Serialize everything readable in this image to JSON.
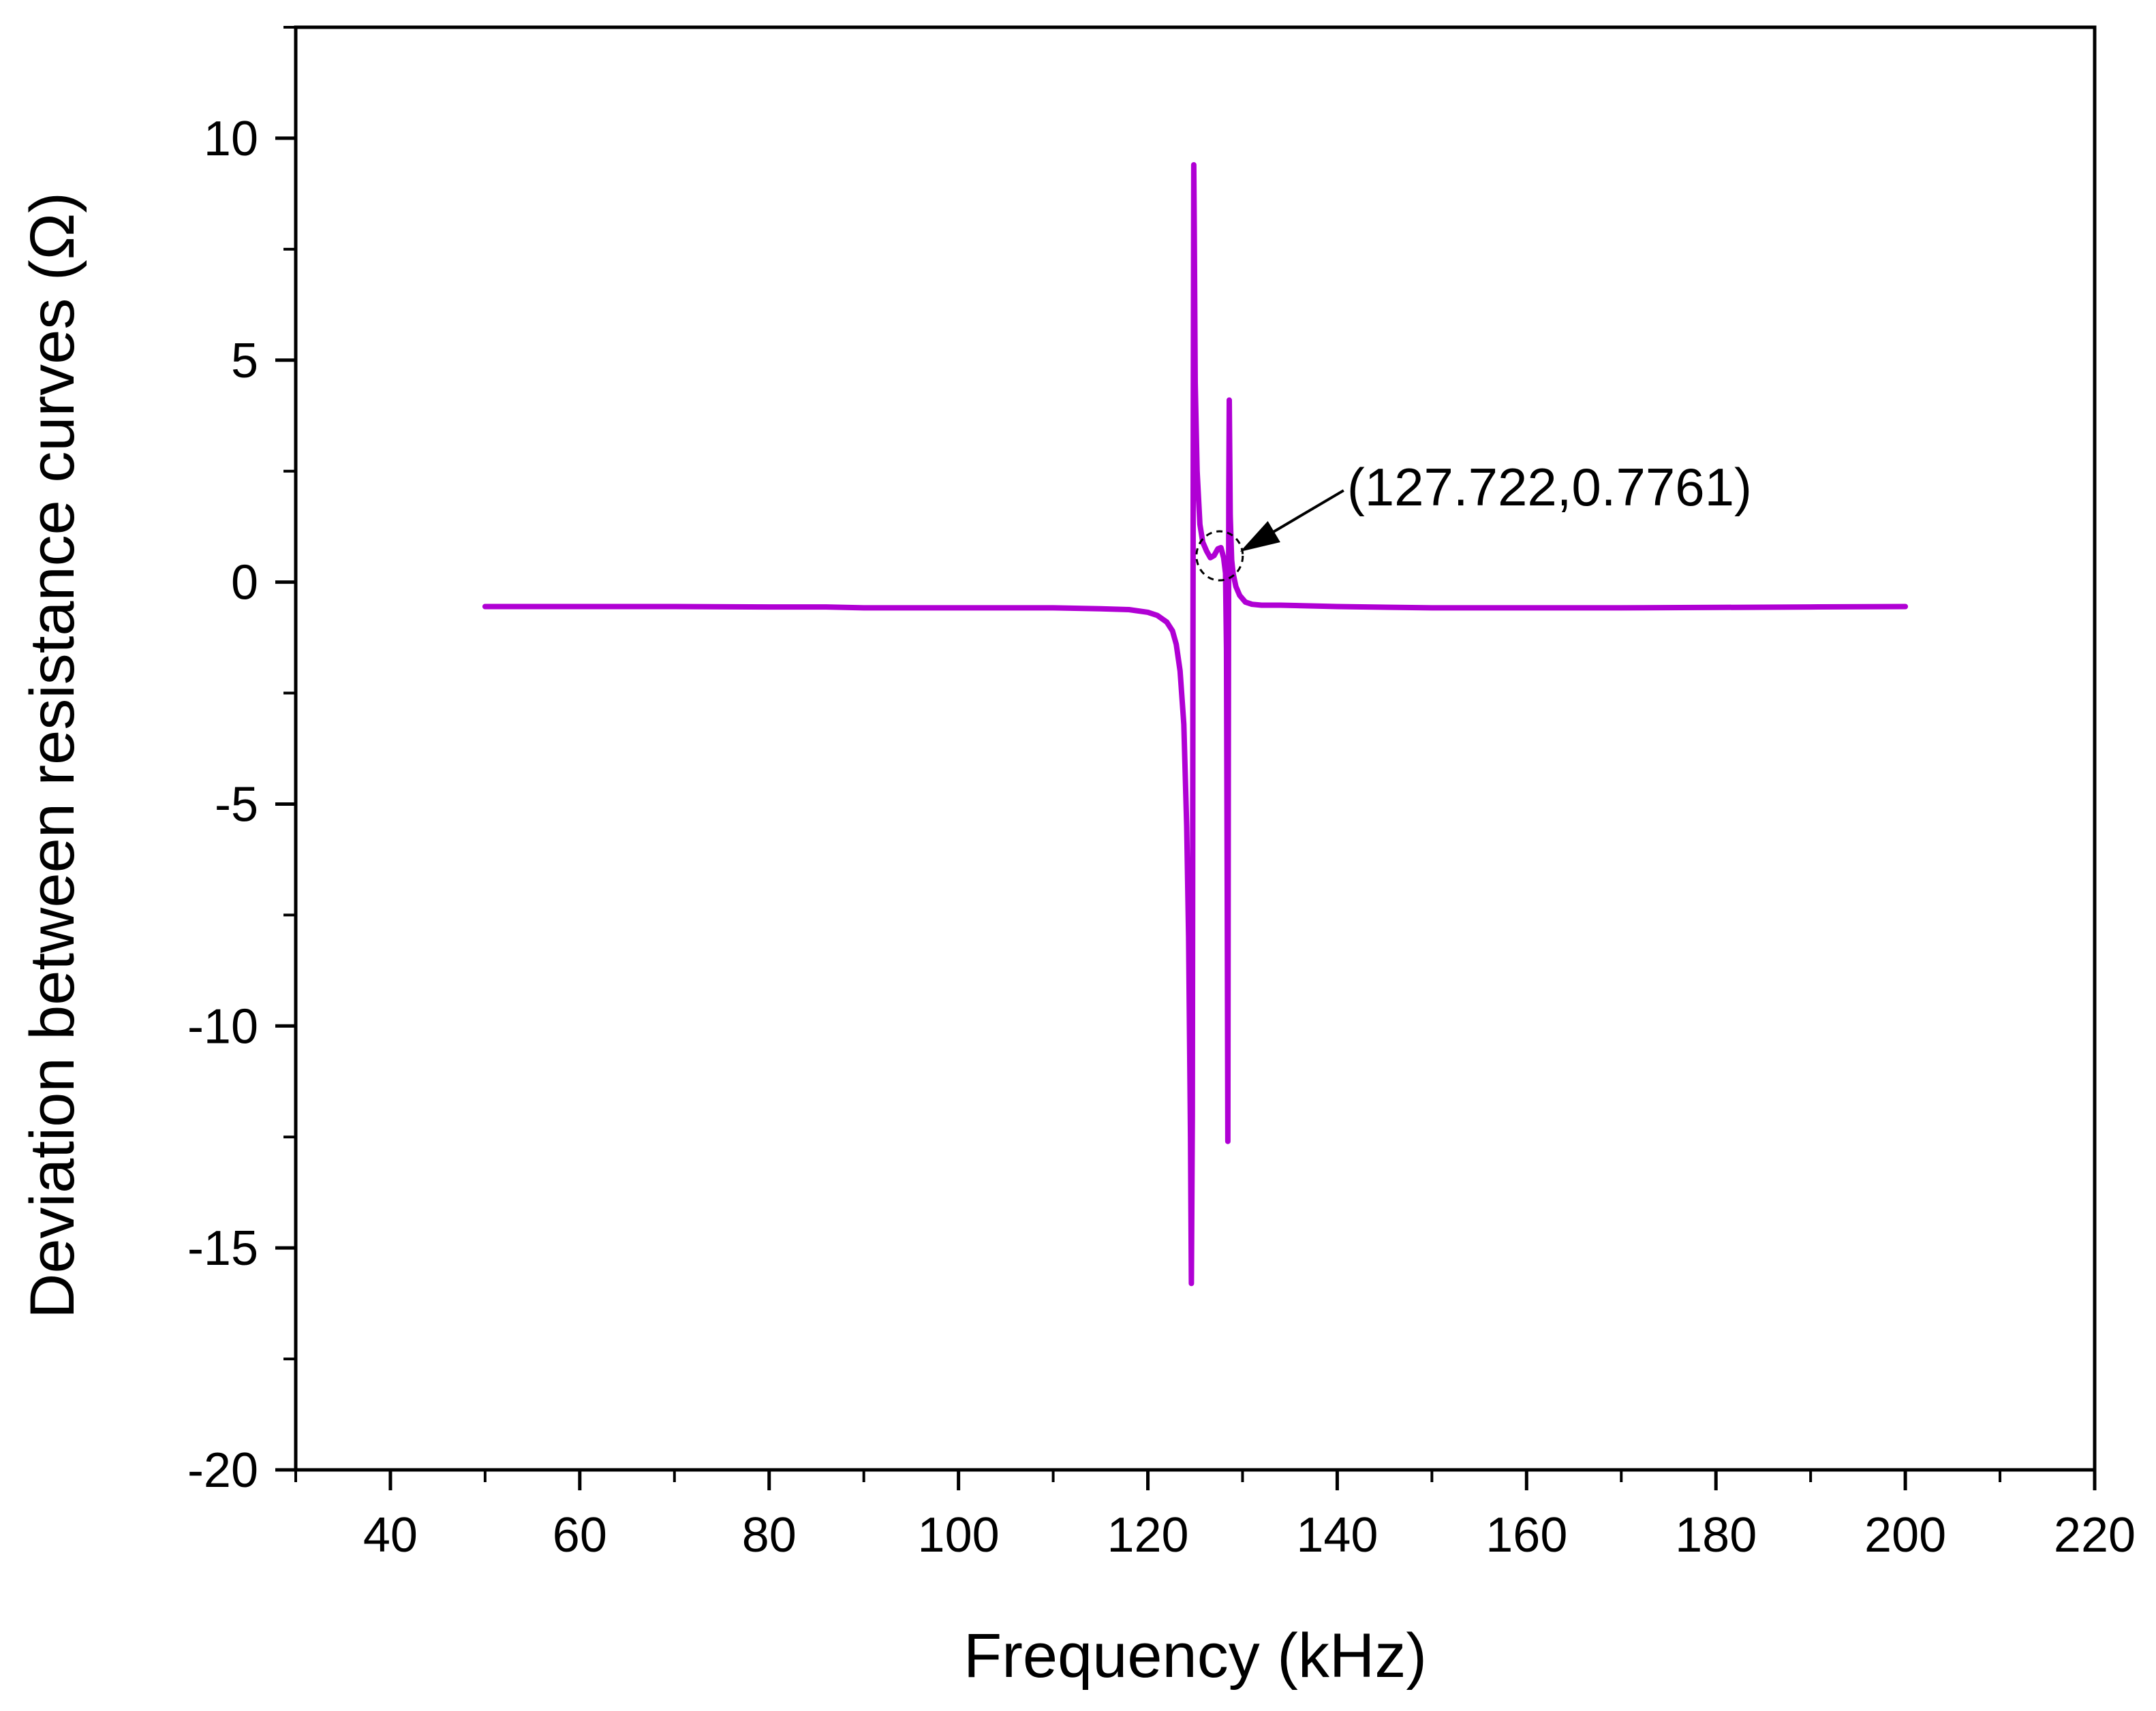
{
  "chart_data": {
    "type": "line",
    "xlabel": "Frequency (kHz)",
    "ylabel": "Deviation between resistance curves (Ω)",
    "xlim": [
      30,
      220
    ],
    "ylim": [
      -20,
      12.5
    ],
    "x_ticks": [
      40,
      60,
      80,
      100,
      120,
      140,
      160,
      180,
      200,
      220
    ],
    "y_ticks": [
      -20,
      -15,
      -10,
      -5,
      0,
      5,
      10
    ],
    "x_tick_labels": [
      "40",
      "60",
      "80",
      "100",
      "120",
      "140",
      "160",
      "180",
      "200",
      "220"
    ],
    "y_tick_labels": [
      "-20",
      "-15",
      "-10",
      "-5",
      "0",
      "5",
      "10"
    ],
    "grid": false,
    "line_color": "#b000d4",
    "series": [
      {
        "x": [
          50,
          60,
          70,
          80,
          86,
          90,
          100,
          110,
          115,
          118,
          120,
          121,
          122,
          122.6,
          123,
          123.4,
          123.8,
          124.1,
          124.3,
          124.5,
          124.6,
          124.7,
          124.75,
          124.8,
          124.85,
          124.9,
          125.0,
          125.2,
          125.5,
          125.8,
          126.2,
          126.6,
          127.0,
          127.4,
          127.722,
          128.0,
          128.2,
          128.3,
          128.38,
          128.45,
          128.5,
          128.55,
          128.6,
          128.7,
          128.85,
          129.0,
          129.3,
          129.7,
          130.3,
          131.0,
          132.0,
          134.0,
          140.0,
          150.0,
          160.0,
          170.0,
          180.0,
          190.0,
          200.0
        ],
        "y": [
          -0.55,
          -0.55,
          -0.55,
          -0.56,
          -0.56,
          -0.58,
          -0.58,
          -0.58,
          -0.6,
          -0.62,
          -0.68,
          -0.75,
          -0.9,
          -1.1,
          -1.4,
          -2.0,
          -3.2,
          -5.5,
          -8.0,
          -12.5,
          -15.8,
          -12.0,
          -4.0,
          4.0,
          9.4,
          8.0,
          4.5,
          2.5,
          1.3,
          0.9,
          0.7,
          0.55,
          0.6,
          0.75,
          0.7761,
          0.55,
          0.2,
          -1.5,
          -7.0,
          -12.6,
          -4.0,
          2.0,
          4.1,
          1.5,
          0.5,
          0.2,
          -0.1,
          -0.3,
          -0.45,
          -0.5,
          -0.52,
          -0.52,
          -0.55,
          -0.58,
          -0.58,
          -0.58,
          -0.57,
          -0.56,
          -0.55
        ]
      }
    ],
    "annotation": {
      "text": "(127.722,0.7761)",
      "x": 127.722,
      "y": 0.7761
    }
  }
}
